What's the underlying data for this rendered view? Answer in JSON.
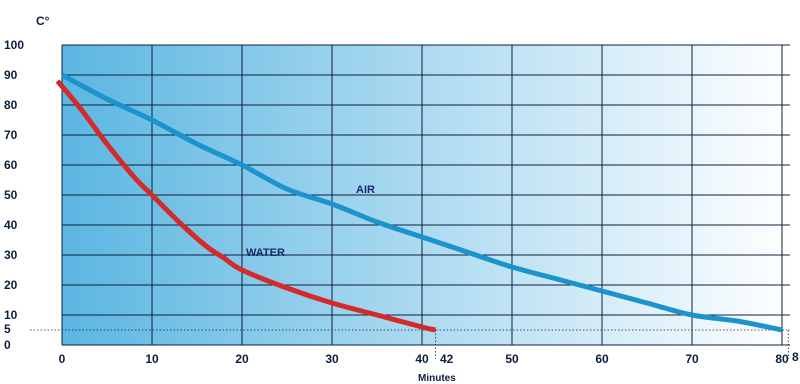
{
  "chart_data": {
    "type": "line",
    "ylabel": "C°",
    "xlabel": "Minutes",
    "xlim": [
      0,
      81
    ],
    "ylim": [
      0,
      100
    ],
    "x_ticks": [
      0,
      10,
      20,
      30,
      40,
      50,
      60,
      70,
      80
    ],
    "y_ticks": [
      0,
      10,
      20,
      30,
      40,
      50,
      60,
      70,
      80,
      90,
      100
    ],
    "extra_y_tick": "5",
    "extra_x_ticks": [
      "42",
      "8"
    ],
    "reference_level": 5,
    "grid": true,
    "background_gradient": [
      "#5bb6e2",
      "#ffffff"
    ],
    "series": [
      {
        "name": "AIR",
        "color": "#1b93cc",
        "points": [
          [
            0,
            90
          ],
          [
            5,
            82
          ],
          [
            10,
            75
          ],
          [
            15,
            67
          ],
          [
            20,
            60
          ],
          [
            25,
            52
          ],
          [
            30,
            47
          ],
          [
            35,
            41
          ],
          [
            40,
            36
          ],
          [
            45,
            31
          ],
          [
            50,
            26
          ],
          [
            55,
            22
          ],
          [
            60,
            18
          ],
          [
            65,
            14
          ],
          [
            70,
            10
          ],
          [
            75,
            8
          ],
          [
            80,
            5
          ]
        ]
      },
      {
        "name": "WATER",
        "color": "#d42a2a",
        "points": [
          [
            -0.5,
            88
          ],
          [
            2,
            79
          ],
          [
            5,
            67
          ],
          [
            8,
            56
          ],
          [
            10,
            50
          ],
          [
            13,
            41
          ],
          [
            16,
            33
          ],
          [
            18,
            29
          ],
          [
            20,
            25
          ],
          [
            25,
            19
          ],
          [
            30,
            14
          ],
          [
            35,
            10
          ],
          [
            40,
            6
          ],
          [
            41.5,
            5
          ]
        ]
      }
    ]
  }
}
